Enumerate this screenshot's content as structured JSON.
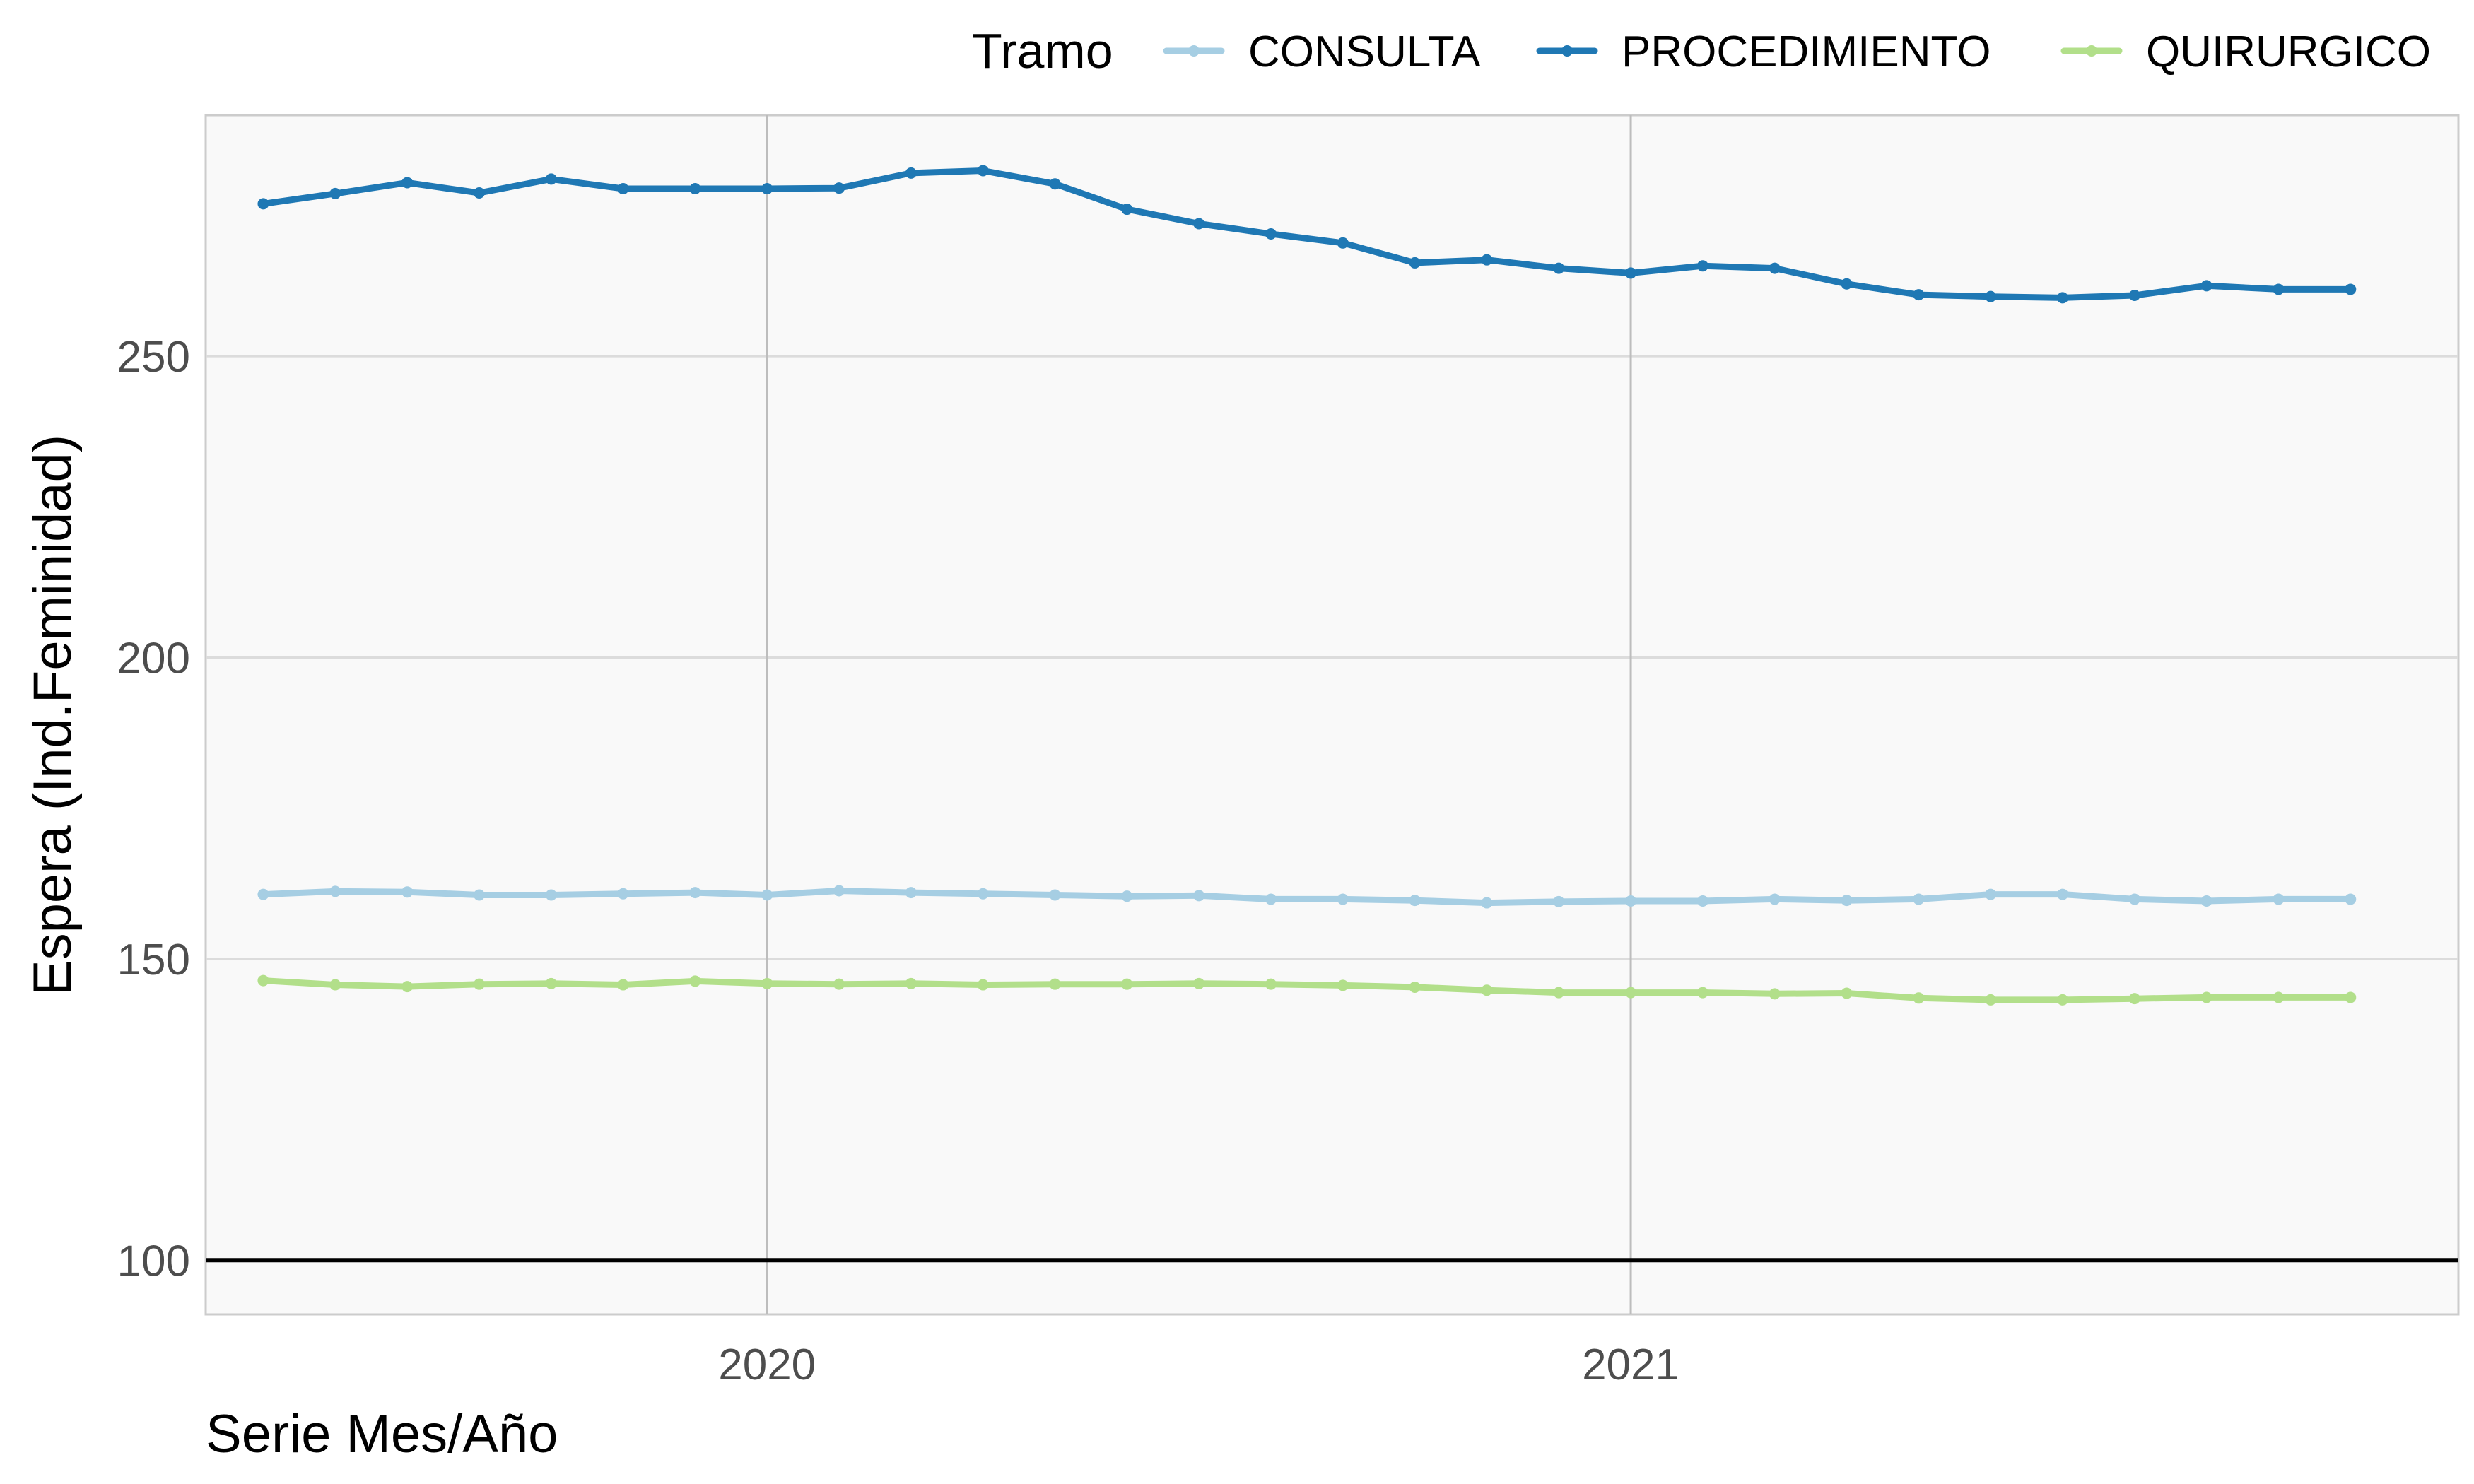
{
  "chart_data": {
    "type": "line",
    "xlabel": "Serie Mes/Año",
    "ylabel": "Espera (Ind.Feminidad)",
    "legend": {
      "title": "Tramo",
      "position": "top-right"
    },
    "x_ticks": [
      "2020",
      "2021"
    ],
    "y_ticks": [
      "100",
      "150",
      "200",
      "250"
    ],
    "ylim": [
      91,
      290
    ],
    "grid": true,
    "reference_line": 100,
    "x": [
      "2019-06",
      "2019-07",
      "2019-08",
      "2019-09",
      "2019-10",
      "2019-11",
      "2019-12",
      "2020-01",
      "2020-02",
      "2020-03",
      "2020-04",
      "2020-05",
      "2020-06",
      "2020-07",
      "2020-08",
      "2020-09",
      "2020-10",
      "2020-11",
      "2020-12",
      "2021-01",
      "2021-02",
      "2021-03",
      "2021-04",
      "2021-05",
      "2021-06",
      "2021-07",
      "2021-08",
      "2021-09",
      "2021-10",
      "2021-11"
    ],
    "series": [
      {
        "name": "CONSULTA",
        "color": "#a6cee3",
        "values": [
          160.7,
          161.2,
          161.1,
          160.6,
          160.6,
          160.8,
          161.0,
          160.6,
          161.3,
          161.0,
          160.8,
          160.6,
          160.4,
          160.5,
          159.9,
          159.9,
          159.7,
          159.3,
          159.5,
          159.6,
          159.6,
          159.9,
          159.7,
          159.9,
          160.7,
          160.7,
          159.9,
          159.6,
          159.9,
          159.9
        ]
      },
      {
        "name": "PROCEDIMIENTO",
        "color": "#1f78b4",
        "values": [
          275.3,
          277.0,
          278.8,
          277.1,
          279.4,
          277.8,
          277.8,
          277.8,
          277.9,
          280.4,
          280.8,
          278.6,
          274.4,
          272.0,
          270.3,
          268.8,
          265.5,
          266.0,
          264.6,
          263.8,
          265.0,
          264.6,
          262.0,
          260.2,
          259.9,
          259.7,
          260.1,
          261.7,
          261.1,
          261.1
        ]
      },
      {
        "name": "QUIRURGICO",
        "color": "#b2df8a",
        "values": [
          146.4,
          145.7,
          145.4,
          145.8,
          145.9,
          145.7,
          146.3,
          145.9,
          145.8,
          145.9,
          145.7,
          145.8,
          145.8,
          145.9,
          145.8,
          145.6,
          145.3,
          144.8,
          144.4,
          144.4,
          144.4,
          144.2,
          144.3,
          143.5,
          143.2,
          143.2,
          143.4,
          143.6,
          143.6,
          143.6
        ]
      }
    ]
  }
}
